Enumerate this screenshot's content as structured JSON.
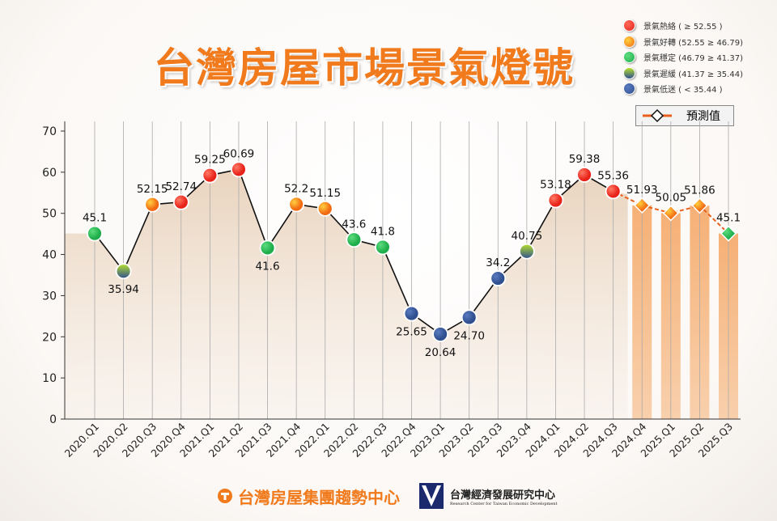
{
  "title": "台灣房屋市場景氣燈號",
  "legend": [
    {
      "label": "景氣熱絡 ( ≥ 52.55 )",
      "color": "#e8231a"
    },
    {
      "label": "景氣好轉 (52.55 ≥ 46.79)",
      "color": "#f7931e"
    },
    {
      "label": "景氣穩定 (46.79 ≥ 41.37)",
      "color": "#1fae4b"
    },
    {
      "label": "景氣遲緩 (41.37 ≥ 35.44)",
      "color": "gradient"
    },
    {
      "label": "景氣低迷 ( < 35.44 )",
      "color": "#2f4f8f"
    }
  ],
  "forecast_legend": "預測值",
  "footer": {
    "logo1": "台灣房屋集團趨勢中心",
    "logo2": "台灣經濟發展研究中心",
    "logo2_en": "Research Center for Taiwan Economic Development"
  },
  "chart_data": {
    "type": "line",
    "categories": [
      "2020.Q1",
      "2020.Q2",
      "2020.Q3",
      "2020.Q4",
      "2021.Q1",
      "2021.Q2",
      "2021.Q3",
      "2021.Q4",
      "2022.Q1",
      "2022.Q2",
      "2022.Q3",
      "2022.Q4",
      "2023.Q1",
      "2023.Q2",
      "2023.Q3",
      "2023.Q4",
      "2024.Q1",
      "2024.Q2",
      "2024.Q3",
      "2024.Q4",
      "2025.Q1",
      "2025.Q2",
      "2025.Q3"
    ],
    "values": [
      45.1,
      35.94,
      52.15,
      52.74,
      59.25,
      60.69,
      41.6,
      52.2,
      51.15,
      43.6,
      41.8,
      25.65,
      20.64,
      24.7,
      34.2,
      40.75,
      53.18,
      59.38,
      55.36,
      51.93,
      50.05,
      51.86,
      45.1
    ],
    "labels": [
      "45.1",
      "35.94",
      "52.15",
      "52.74",
      "59.25",
      "60.69",
      "41.6",
      "52.2",
      "51.15",
      "43.6",
      "41.8",
      "25.65",
      "20.64",
      "24.70",
      "34.2",
      "40.75",
      "53.18",
      "59.38",
      "55.36",
      "51.93",
      "50.05",
      "51.86",
      "45.1"
    ],
    "forecast": [
      false,
      false,
      false,
      false,
      false,
      false,
      false,
      false,
      false,
      false,
      false,
      false,
      false,
      false,
      false,
      false,
      false,
      false,
      false,
      true,
      true,
      true,
      true
    ],
    "ylim": [
      0,
      70
    ],
    "yticks": [
      0,
      10,
      20,
      30,
      40,
      50,
      60,
      70
    ],
    "grid": "vertical",
    "colors": {
      "hot": "#e8231a",
      "good": "#f7931e",
      "stable": "#1fae4b",
      "slow": "gradient",
      "low": "#2f4f8f",
      "line": "#111111",
      "forecast_line": "#e8601c",
      "area": "#ecd9c5",
      "forecast_bar": "#f6b27a"
    }
  }
}
